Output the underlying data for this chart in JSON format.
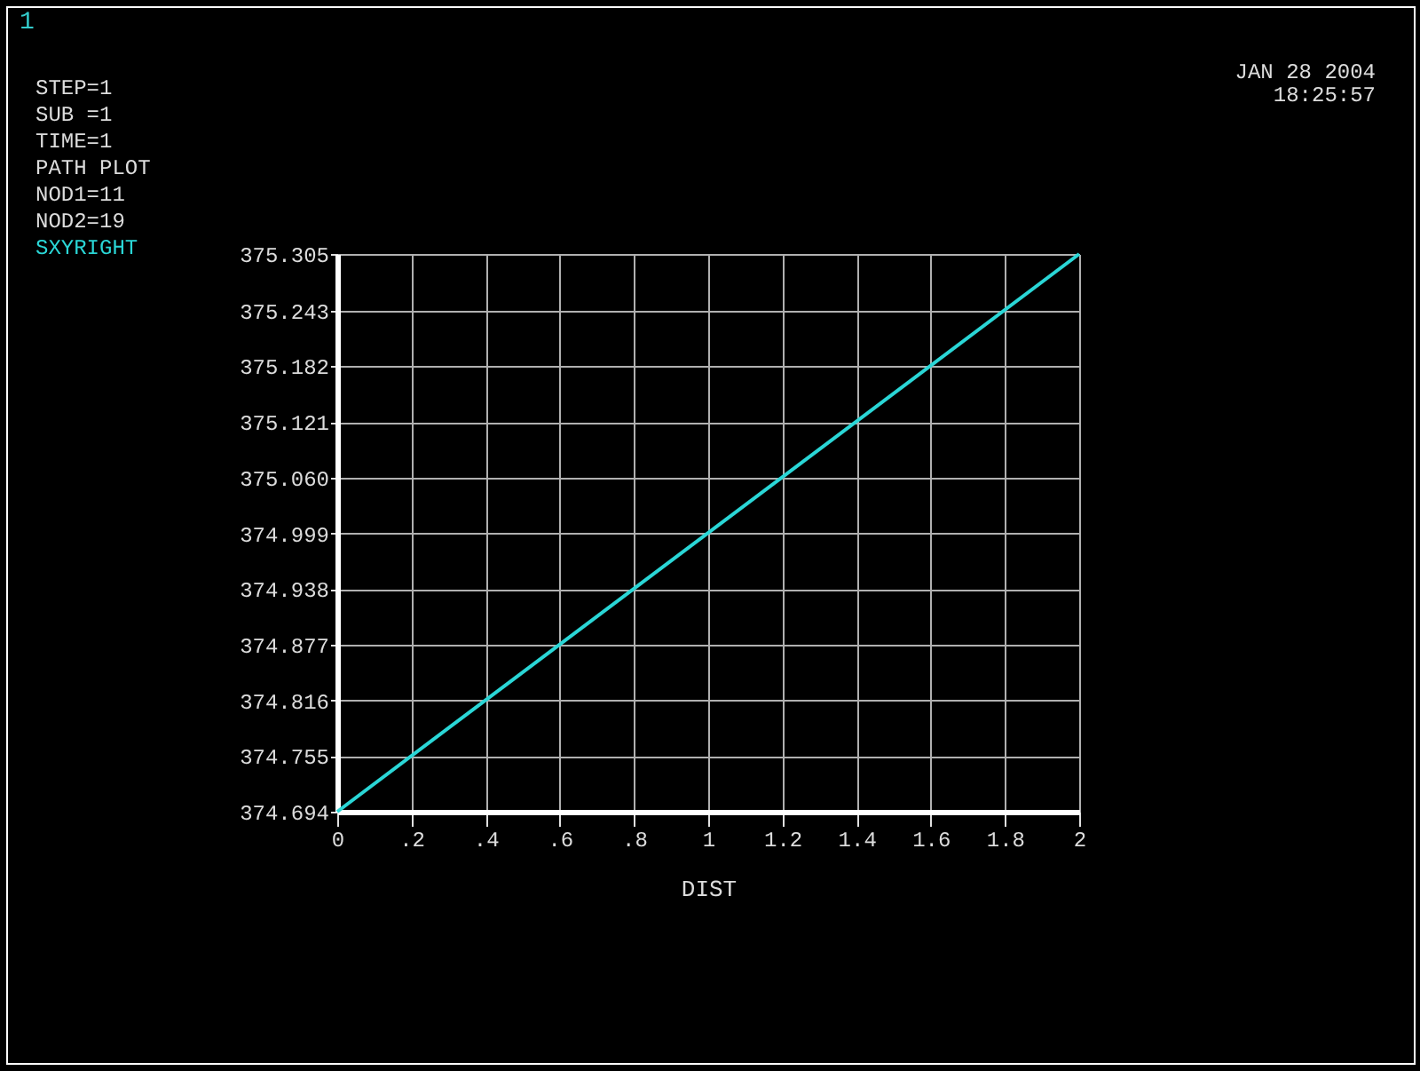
{
  "chart_data": {
    "type": "line",
    "xlabel": "DIST",
    "annotations": [
      "1",
      "STEP=1",
      "SUB =1",
      "TIME=1",
      "PATH PLOT",
      "NOD1=11",
      "NOD2=19",
      "JAN 28 2004",
      "18:25:57"
    ],
    "x": [
      0,
      2
    ],
    "series": [
      {
        "name": "SXYRIGHT",
        "color": "#2ad6d6",
        "values": [
          374.694,
          375.305
        ]
      }
    ],
    "xlim": [
      0,
      2
    ],
    "xticks": [
      0,
      {
        "value": 0.2,
        "label": ".2"
      },
      {
        "value": 0.4,
        "label": ".4"
      },
      {
        "value": 0.6,
        "label": ".6"
      },
      {
        "value": 0.8,
        "label": ".8"
      },
      1,
      1.2,
      1.4,
      1.6,
      1.8,
      2
    ],
    "ylim": [
      374.694,
      375.305
    ],
    "yticks": [
      374.694,
      374.755,
      374.816,
      374.877,
      374.938,
      374.999,
      {
        "value": 375.06,
        "label": "375.060"
      },
      375.121,
      375.182,
      375.243,
      375.305
    ],
    "grid": true,
    "legend": "top left",
    "line_style": "solid"
  }
}
